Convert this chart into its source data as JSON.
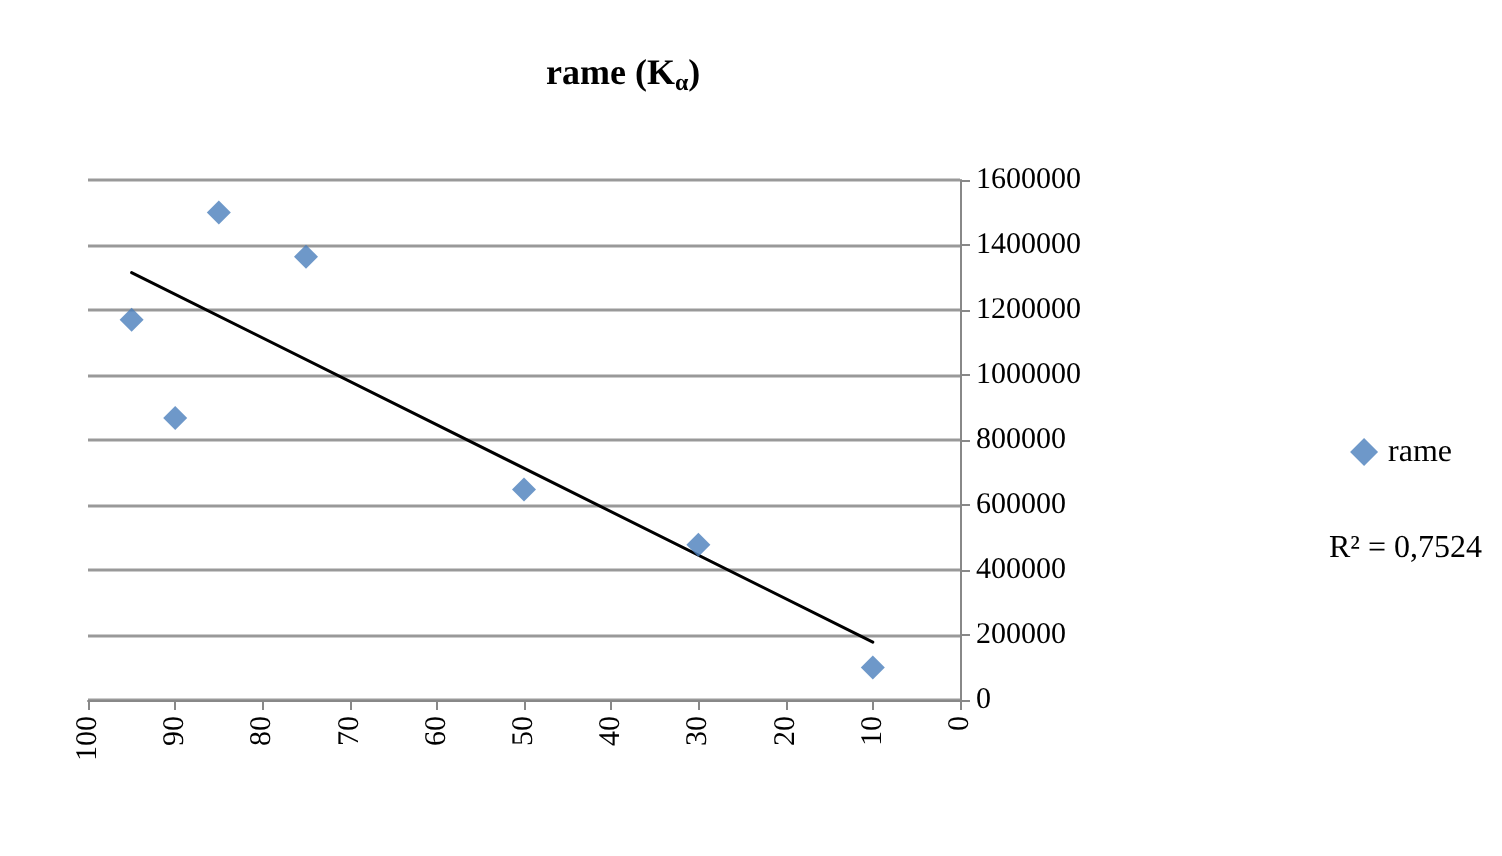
{
  "chart_data": {
    "type": "scatter",
    "title": "rame (K$_{α}$)",
    "xlim": [
      100,
      0
    ],
    "xticks": [
      100,
      90,
      80,
      70,
      60,
      50,
      40,
      30,
      20,
      10,
      0
    ],
    "ylim": [
      0,
      1600000
    ],
    "yticks": [
      0,
      200000,
      400000,
      600000,
      800000,
      1000000,
      1200000,
      1400000,
      1600000
    ],
    "grid": "y",
    "legend": "right",
    "marker": "diamond",
    "annotations": [
      "R² = 0,7524"
    ],
    "series": [
      {
        "name": "rame",
        "color": "#4a7ebb",
        "x": [
          95,
          90,
          85,
          75,
          50,
          30,
          10
        ],
        "values": [
          1170000,
          868000,
          1500000,
          1364000,
          648000,
          478000,
          100000
        ]
      },
      {
        "type": "line",
        "color": "#000000",
        "marker": "none",
        "line_style": "solid",
        "x": [
          95,
          10
        ],
        "values": [
          1315000,
          178000
        ]
      }
    ]
  }
}
